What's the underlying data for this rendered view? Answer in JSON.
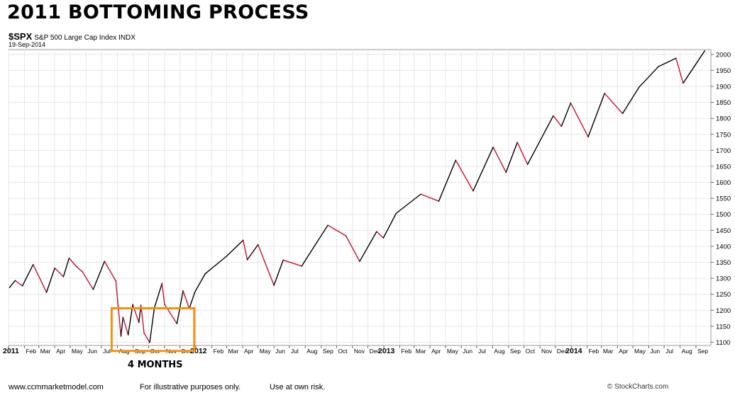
{
  "title": "2011 BOTTOMING PROCESS",
  "ticker": {
    "symbol": "$SPX",
    "name": "S&P 500 Large Cap Index",
    "exchange": "INDX"
  },
  "date": "19-Sep-2014",
  "annotation": "4 MONTHS",
  "footer": {
    "site": "www.ccmmarketmodel.com",
    "note1": "For illustrative purposes only.",
    "note2": "Use at own risk.",
    "copyright": "© StockCharts.com"
  },
  "colors": {
    "line_up": "#000000",
    "line_down": "#c41230",
    "highlight": "#f29111",
    "grid": "#e6e6e6"
  },
  "chart_data": {
    "type": "line",
    "title": "2011 BOTTOMING PROCESS",
    "xlabel": "",
    "ylabel": "",
    "xlim": [
      "2011-01-01",
      "2014-09-30"
    ],
    "ylim": [
      1090,
      2015
    ],
    "y_ticks": [
      1100,
      1150,
      1200,
      1250,
      1300,
      1350,
      1400,
      1450,
      1500,
      1550,
      1600,
      1650,
      1700,
      1750,
      1800,
      1850,
      1900,
      1950,
      2000
    ],
    "x_ticks": [
      {
        "label": "2011",
        "bold": true,
        "date": "2011-01-01"
      },
      {
        "label": "Feb",
        "date": "2011-02-01"
      },
      {
        "label": "Mar",
        "date": "2011-03-01"
      },
      {
        "label": "Apr",
        "date": "2011-04-01"
      },
      {
        "label": "May",
        "date": "2011-05-01"
      },
      {
        "label": "Jun",
        "date": "2011-06-01"
      },
      {
        "label": "Jul",
        "date": "2011-07-01"
      },
      {
        "label": "Aug",
        "date": "2011-08-01"
      },
      {
        "label": "Sep",
        "date": "2011-09-01"
      },
      {
        "label": "Oct",
        "date": "2011-10-01"
      },
      {
        "label": "Nov",
        "date": "2011-11-01"
      },
      {
        "label": "Dec",
        "date": "2011-12-01"
      },
      {
        "label": "2012",
        "bold": true,
        "date": "2012-01-01"
      },
      {
        "label": "Feb",
        "date": "2012-02-01"
      },
      {
        "label": "Mar",
        "date": "2012-03-01"
      },
      {
        "label": "Apr",
        "date": "2012-04-01"
      },
      {
        "label": "May",
        "date": "2012-05-01"
      },
      {
        "label": "Jun",
        "date": "2012-06-01"
      },
      {
        "label": "Jul",
        "date": "2012-07-01"
      },
      {
        "label": "Aug",
        "date": "2012-08-01"
      },
      {
        "label": "Sep",
        "date": "2012-09-01"
      },
      {
        "label": "Oct",
        "date": "2012-10-01"
      },
      {
        "label": "Nov",
        "date": "2012-11-01"
      },
      {
        "label": "Dec",
        "date": "2012-12-01"
      },
      {
        "label": "2013",
        "bold": true,
        "date": "2013-01-01"
      },
      {
        "label": "Feb",
        "date": "2013-02-01"
      },
      {
        "label": "Mar",
        "date": "2013-03-01"
      },
      {
        "label": "Apr",
        "date": "2013-04-01"
      },
      {
        "label": "May",
        "date": "2013-05-01"
      },
      {
        "label": "Jun",
        "date": "2013-06-01"
      },
      {
        "label": "Jul",
        "date": "2013-07-01"
      },
      {
        "label": "Aug",
        "date": "2013-08-01"
      },
      {
        "label": "Sep",
        "date": "2013-09-01"
      },
      {
        "label": "Oct",
        "date": "2013-10-01"
      },
      {
        "label": "Nov",
        "date": "2013-11-01"
      },
      {
        "label": "Dec",
        "date": "2013-12-01"
      },
      {
        "label": "2014",
        "bold": true,
        "date": "2014-01-01"
      },
      {
        "label": "Feb",
        "date": "2014-02-01"
      },
      {
        "label": "Mar",
        "date": "2014-03-01"
      },
      {
        "label": "Apr",
        "date": "2014-04-01"
      },
      {
        "label": "May",
        "date": "2014-05-01"
      },
      {
        "label": "Jun",
        "date": "2014-06-01"
      },
      {
        "label": "Jul",
        "date": "2014-07-01"
      },
      {
        "label": "Aug",
        "date": "2014-08-01"
      },
      {
        "label": "Sep",
        "date": "2014-09-01"
      }
    ],
    "grid": true,
    "series": [
      {
        "points": [
          [
            "2011-01-03",
            1271
          ],
          [
            "2011-01-14",
            1293
          ],
          [
            "2011-01-28",
            1276
          ],
          [
            "2011-02-18",
            1343
          ],
          [
            "2011-03-16",
            1256
          ],
          [
            "2011-04-01",
            1332
          ],
          [
            "2011-04-18",
            1305
          ],
          [
            "2011-04-29",
            1363
          ],
          [
            "2011-05-13",
            1337
          ],
          [
            "2011-05-25",
            1320
          ],
          [
            "2011-06-15",
            1265
          ],
          [
            "2011-07-07",
            1353
          ],
          [
            "2011-07-29",
            1292
          ],
          [
            "2011-08-08",
            1119
          ],
          [
            "2011-08-12",
            1178
          ],
          [
            "2011-08-22",
            1123
          ],
          [
            "2011-08-31",
            1218
          ],
          [
            "2011-09-12",
            1162
          ],
          [
            "2011-09-16",
            1216
          ],
          [
            "2011-09-22",
            1129
          ],
          [
            "2011-10-03",
            1099
          ],
          [
            "2011-10-12",
            1207
          ],
          [
            "2011-10-27",
            1284
          ],
          [
            "2011-11-01",
            1218
          ],
          [
            "2011-11-25",
            1158
          ],
          [
            "2011-12-07",
            1261
          ],
          [
            "2011-12-19",
            1205
          ],
          [
            "2011-12-30",
            1257
          ],
          [
            "2012-01-19",
            1314
          ],
          [
            "2012-02-29",
            1368
          ],
          [
            "2012-04-02",
            1419
          ],
          [
            "2012-04-10",
            1358
          ],
          [
            "2012-05-01",
            1405
          ],
          [
            "2012-06-01",
            1278
          ],
          [
            "2012-06-19",
            1357
          ],
          [
            "2012-07-25",
            1338
          ],
          [
            "2012-09-14",
            1466
          ],
          [
            "2012-10-19",
            1433
          ],
          [
            "2012-11-15",
            1353
          ],
          [
            "2012-12-18",
            1446
          ],
          [
            "2012-12-31",
            1426
          ],
          [
            "2013-01-25",
            1503
          ],
          [
            "2013-03-14",
            1563
          ],
          [
            "2013-04-18",
            1541
          ],
          [
            "2013-05-21",
            1669
          ],
          [
            "2013-06-24",
            1573
          ],
          [
            "2013-08-02",
            1710
          ],
          [
            "2013-08-27",
            1631
          ],
          [
            "2013-09-18",
            1725
          ],
          [
            "2013-10-08",
            1656
          ],
          [
            "2013-11-27",
            1808
          ],
          [
            "2013-12-13",
            1775
          ],
          [
            "2013-12-31",
            1848
          ],
          [
            "2014-02-03",
            1742
          ],
          [
            "2014-03-07",
            1878
          ],
          [
            "2014-04-11",
            1815
          ],
          [
            "2014-05-13",
            1897
          ],
          [
            "2014-06-20",
            1962
          ],
          [
            "2014-07-24",
            1988
          ],
          [
            "2014-08-07",
            1910
          ],
          [
            "2014-09-18",
            2011
          ]
        ]
      }
    ],
    "highlight": {
      "label": "4 MONTHS",
      "x_range": [
        "2011-08-01",
        "2011-12-15"
      ],
      "y_range": [
        1095,
        1215
      ]
    }
  }
}
